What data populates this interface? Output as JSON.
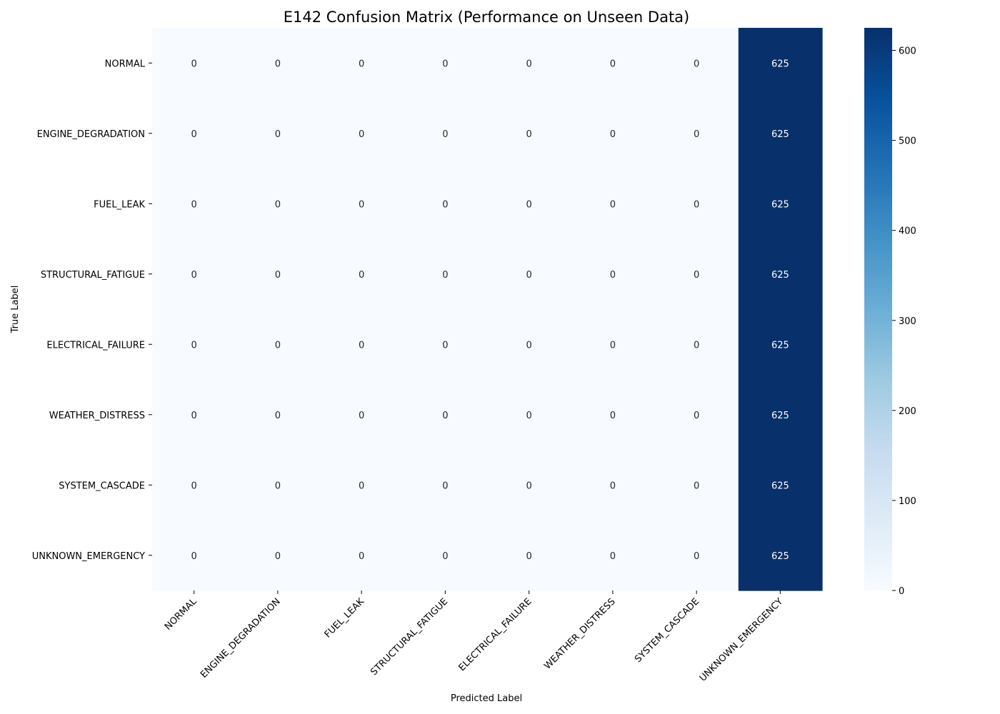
{
  "chart_data": {
    "type": "heatmap",
    "title": "E142 Confusion Matrix (Performance on Unseen Data)",
    "xlabel": "Predicted Label",
    "ylabel": "True Label",
    "x_categories": [
      "NORMAL",
      "ENGINE_DEGRADATION",
      "FUEL_LEAK",
      "STRUCTURAL_FATIGUE",
      "ELECTRICAL_FAILURE",
      "WEATHER_DISTRESS",
      "SYSTEM_CASCADE",
      "UNKNOWN_EMERGENCY"
    ],
    "y_categories": [
      "NORMAL",
      "ENGINE_DEGRADATION",
      "FUEL_LEAK",
      "STRUCTURAL_FATIGUE",
      "ELECTRICAL_FAILURE",
      "WEATHER_DISTRESS",
      "SYSTEM_CASCADE",
      "UNKNOWN_EMERGENCY"
    ],
    "values": [
      [
        0,
        0,
        0,
        0,
        0,
        0,
        0,
        625
      ],
      [
        0,
        0,
        0,
        0,
        0,
        0,
        0,
        625
      ],
      [
        0,
        0,
        0,
        0,
        0,
        0,
        0,
        625
      ],
      [
        0,
        0,
        0,
        0,
        0,
        0,
        0,
        625
      ],
      [
        0,
        0,
        0,
        0,
        0,
        0,
        0,
        625
      ],
      [
        0,
        0,
        0,
        0,
        0,
        0,
        0,
        625
      ],
      [
        0,
        0,
        0,
        0,
        0,
        0,
        0,
        625
      ],
      [
        0,
        0,
        0,
        0,
        0,
        0,
        0,
        625
      ]
    ],
    "colormap": "Blues",
    "colorbar": {
      "range": [
        0,
        625
      ],
      "ticks": [
        0,
        100,
        200,
        300,
        400,
        500,
        600
      ]
    },
    "colors": {
      "low": "#f7fbff",
      "high": "#08306b"
    }
  }
}
